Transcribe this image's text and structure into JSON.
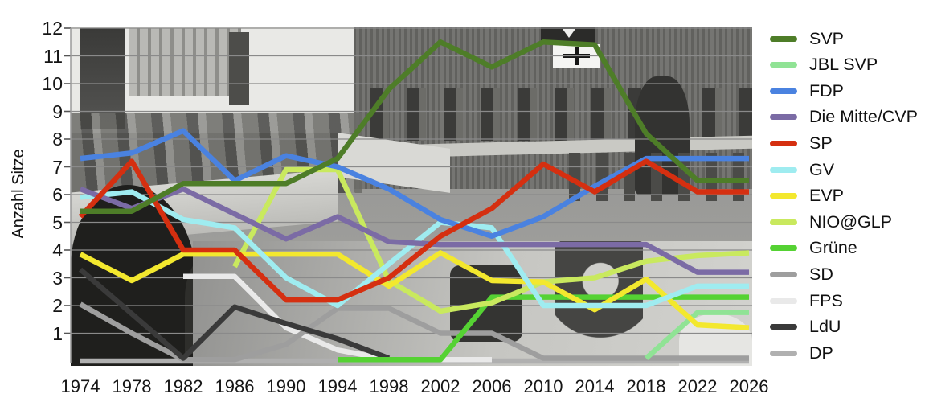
{
  "chart_data": {
    "type": "line",
    "title": "",
    "ylabel": "Anzahl Sitze",
    "xlabel": "",
    "ylim": [
      0,
      12
    ],
    "y_tick_labels": [
      "1",
      "2",
      "3",
      "4",
      "5",
      "6",
      "7",
      "8",
      "9",
      "10",
      "11",
      "12"
    ],
    "grid": true,
    "legend_position": "right",
    "categories": [
      "1974",
      "1978",
      "1982",
      "1986",
      "1990",
      "1994",
      "1998",
      "2002",
      "2006",
      "2010",
      "2014",
      "2018",
      "2022",
      "2026"
    ],
    "series": [
      {
        "name": "SVP",
        "color": "#4e7d28",
        "values": [
          5.4,
          5.4,
          6.4,
          6.4,
          6.4,
          7.3,
          9.8,
          11.5,
          10.6,
          11.5,
          11.4,
          8.2,
          6.5,
          6.5
        ]
      },
      {
        "name": "JBL SVP",
        "color": "#90e395",
        "values": [
          null,
          null,
          null,
          null,
          null,
          null,
          null,
          null,
          null,
          null,
          null,
          0.1,
          1.75,
          1.75
        ]
      },
      {
        "name": "FDP",
        "color": "#4a82e0",
        "values": [
          7.3,
          7.5,
          8.3,
          6.5,
          7.4,
          7.0,
          6.2,
          5.1,
          4.5,
          5.2,
          6.3,
          7.3,
          7.3,
          7.3
        ]
      },
      {
        "name": "Die Mitte/CVP",
        "color": "#7b6ba5",
        "values": [
          6.2,
          5.5,
          6.2,
          5.3,
          4.4,
          5.2,
          4.3,
          4.2,
          4.2,
          4.2,
          4.2,
          4.2,
          3.2,
          3.2
        ]
      },
      {
        "name": "SP",
        "color": "#d52f10",
        "values": [
          5.2,
          7.2,
          4.0,
          4.0,
          2.2,
          2.2,
          3.0,
          4.5,
          5.5,
          7.1,
          6.1,
          7.2,
          6.1,
          6.1
        ]
      },
      {
        "name": "GV",
        "color": "#9fecf0",
        "values": [
          5.9,
          6.1,
          5.1,
          4.8,
          3.0,
          2.0,
          3.5,
          5.0,
          4.8,
          2.0,
          2.0,
          2.0,
          2.7,
          2.7
        ]
      },
      {
        "name": "EVP",
        "color": "#f3e82e",
        "values": [
          3.85,
          2.9,
          3.85,
          3.85,
          3.85,
          3.85,
          2.7,
          3.9,
          2.9,
          2.85,
          1.85,
          2.95,
          1.3,
          1.2
        ]
      },
      {
        "name": "NIO@GLP",
        "color": "#c9e95e",
        "values": [
          null,
          null,
          null,
          3.4,
          6.9,
          6.9,
          2.9,
          1.8,
          2.1,
          2.85,
          3.0,
          3.6,
          3.8,
          3.9
        ]
      },
      {
        "name": "Grüne",
        "color": "#55d233",
        "values": [
          null,
          null,
          null,
          null,
          null,
          0.05,
          0.05,
          0.05,
          2.3,
          2.3,
          2.3,
          2.3,
          2.3,
          2.3
        ]
      },
      {
        "name": "SD",
        "color": "#9e9e9e",
        "values": [
          2.05,
          1.0,
          0.05,
          0.05,
          0.6,
          1.9,
          1.9,
          1.0,
          1.0,
          0.1,
          0.1,
          0.1,
          0.1,
          0.1
        ]
      },
      {
        "name": "FPS",
        "color": "#e9e9e9",
        "values": [
          null,
          null,
          3.05,
          3.05,
          1.2,
          0.4,
          0.05,
          0.05,
          0.05,
          null,
          null,
          null,
          null,
          null
        ]
      },
      {
        "name": "LdU",
        "color": "#3a3a3a",
        "values": [
          3.3,
          1.7,
          0.1,
          1.95,
          1.35,
          0.8,
          0.1,
          null,
          null,
          null,
          null,
          null,
          null,
          null
        ]
      },
      {
        "name": "DP",
        "color": "#b0b0b0",
        "values": [
          0,
          0,
          0,
          0,
          0,
          0,
          0,
          0,
          0,
          0,
          0,
          0,
          0,
          0
        ]
      }
    ]
  }
}
